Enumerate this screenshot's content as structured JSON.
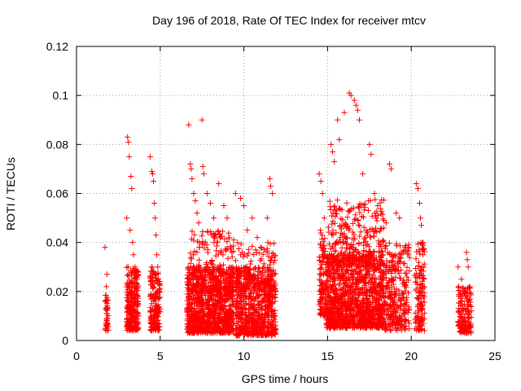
{
  "chart_data": {
    "type": "scatter",
    "title": "Day 196 of 2018, Rate Of TEC Index for receiver mtcv",
    "xlabel": "GPS time / hours",
    "ylabel": "ROTI / TECUs",
    "xlim": [
      0,
      25
    ],
    "ylim": [
      0,
      0.12
    ],
    "xticks": [
      0,
      5,
      10,
      15,
      20,
      25
    ],
    "xtick_labels": [
      "0",
      "5",
      "10",
      "15",
      "20",
      "25"
    ],
    "yticks": [
      0,
      0.02,
      0.04,
      0.06,
      0.08,
      0.1,
      0.12
    ],
    "ytick_labels": [
      "0",
      "0.02",
      "0.04",
      "0.06",
      "0.08",
      "0.1",
      "0.12"
    ],
    "grid": true,
    "marker": "+",
    "color": "#ff0000",
    "series": [
      {
        "name": "ROTI",
        "points": [
          [
            1.7,
            0.038
          ],
          [
            1.72,
            0.005
          ],
          [
            1.75,
            0.016
          ],
          [
            1.78,
            0.022
          ],
          [
            1.8,
            0.011
          ],
          [
            1.82,
            0.027
          ],
          [
            1.83,
            0.008
          ],
          [
            1.85,
            0.013
          ],
          [
            3.0,
            0.05
          ],
          [
            3.05,
            0.083
          ],
          [
            3.08,
            0.03
          ],
          [
            3.1,
            0.081
          ],
          [
            3.15,
            0.075
          ],
          [
            3.2,
            0.045
          ],
          [
            3.25,
            0.067
          ],
          [
            3.3,
            0.062
          ],
          [
            3.35,
            0.04
          ],
          [
            3.4,
            0.035
          ],
          [
            3.45,
            0.025
          ],
          [
            3.5,
            0.03
          ],
          [
            3.6,
            0.015
          ],
          [
            3.7,
            0.01
          ],
          [
            4.4,
            0.075
          ],
          [
            4.5,
            0.069
          ],
          [
            4.55,
            0.068
          ],
          [
            4.6,
            0.065
          ],
          [
            4.65,
            0.056
          ],
          [
            4.7,
            0.05
          ],
          [
            4.75,
            0.043
          ],
          [
            4.8,
            0.035
          ],
          [
            4.85,
            0.03
          ],
          [
            4.9,
            0.025
          ],
          [
            4.95,
            0.02
          ],
          [
            6.7,
            0.088
          ],
          [
            6.8,
            0.072
          ],
          [
            6.85,
            0.07
          ],
          [
            6.9,
            0.066
          ],
          [
            7.0,
            0.06
          ],
          [
            7.1,
            0.057
          ],
          [
            7.2,
            0.052
          ],
          [
            7.3,
            0.048
          ],
          [
            7.5,
            0.09
          ],
          [
            7.55,
            0.071
          ],
          [
            7.6,
            0.068
          ],
          [
            7.8,
            0.06
          ],
          [
            8.0,
            0.056
          ],
          [
            8.2,
            0.05
          ],
          [
            8.5,
            0.064
          ],
          [
            8.8,
            0.055
          ],
          [
            9.0,
            0.05
          ],
          [
            9.5,
            0.06
          ],
          [
            9.8,
            0.058
          ],
          [
            10.0,
            0.055
          ],
          [
            10.2,
            0.045
          ],
          [
            10.5,
            0.05
          ],
          [
            10.8,
            0.042
          ],
          [
            11.0,
            0.038
          ],
          [
            11.4,
            0.05
          ],
          [
            11.55,
            0.066
          ],
          [
            11.6,
            0.063
          ],
          [
            11.7,
            0.06
          ],
          [
            14.5,
            0.068
          ],
          [
            14.6,
            0.065
          ],
          [
            14.7,
            0.06
          ],
          [
            14.8,
            0.05
          ],
          [
            15.2,
            0.08
          ],
          [
            15.3,
            0.077
          ],
          [
            15.4,
            0.073
          ],
          [
            15.6,
            0.09
          ],
          [
            15.7,
            0.082
          ],
          [
            16.0,
            0.093
          ],
          [
            16.3,
            0.101
          ],
          [
            16.4,
            0.1
          ],
          [
            16.6,
            0.098
          ],
          [
            16.7,
            0.096
          ],
          [
            16.8,
            0.094
          ],
          [
            16.9,
            0.09
          ],
          [
            17.1,
            0.068
          ],
          [
            17.5,
            0.08
          ],
          [
            17.6,
            0.076
          ],
          [
            17.8,
            0.06
          ],
          [
            18.0,
            0.055
          ],
          [
            18.5,
            0.048
          ],
          [
            18.7,
            0.072
          ],
          [
            18.8,
            0.07
          ],
          [
            19.1,
            0.052
          ],
          [
            19.3,
            0.05
          ],
          [
            20.3,
            0.064
          ],
          [
            20.4,
            0.062
          ],
          [
            20.5,
            0.056
          ],
          [
            20.55,
            0.05
          ],
          [
            20.6,
            0.047
          ],
          [
            20.65,
            0.04
          ],
          [
            20.7,
            0.035
          ],
          [
            20.75,
            0.03
          ],
          [
            22.8,
            0.03
          ],
          [
            23.0,
            0.025
          ],
          [
            23.2,
            0.02
          ],
          [
            23.3,
            0.036
          ],
          [
            23.35,
            0.033
          ],
          [
            23.4,
            0.03
          ]
        ],
        "clusters": [
          {
            "x": [
              1.7,
              1.9
            ],
            "y": [
              0.004,
              0.02
            ],
            "n": 40
          },
          {
            "x": [
              3.0,
              3.7
            ],
            "y": [
              0.004,
              0.03
            ],
            "n": 260
          },
          {
            "x": [
              4.4,
              5.0
            ],
            "y": [
              0.004,
              0.03
            ],
            "n": 170
          },
          {
            "x": [
              6.6,
              9.4
            ],
            "y": [
              0.003,
              0.03
            ],
            "n": 950
          },
          {
            "x": [
              6.8,
              9.4
            ],
            "y": [
              0.02,
              0.045
            ],
            "n": 200
          },
          {
            "x": [
              9.5,
              11.9
            ],
            "y": [
              0.002,
              0.03
            ],
            "n": 700
          },
          {
            "x": [
              9.5,
              11.9
            ],
            "y": [
              0.02,
              0.04
            ],
            "n": 120
          },
          {
            "x": [
              14.5,
              14.9
            ],
            "y": [
              0.01,
              0.045
            ],
            "n": 120
          },
          {
            "x": [
              14.9,
              18.4
            ],
            "y": [
              0.005,
              0.035
            ],
            "n": 1200
          },
          {
            "x": [
              15.0,
              18.4
            ],
            "y": [
              0.03,
              0.058
            ],
            "n": 300
          },
          {
            "x": [
              18.4,
              19.9
            ],
            "y": [
              0.004,
              0.04
            ],
            "n": 280
          },
          {
            "x": [
              20.2,
              20.8
            ],
            "y": [
              0.004,
              0.04
            ],
            "n": 130
          },
          {
            "x": [
              22.8,
              23.6
            ],
            "y": [
              0.003,
              0.022
            ],
            "n": 150
          }
        ]
      }
    ]
  }
}
